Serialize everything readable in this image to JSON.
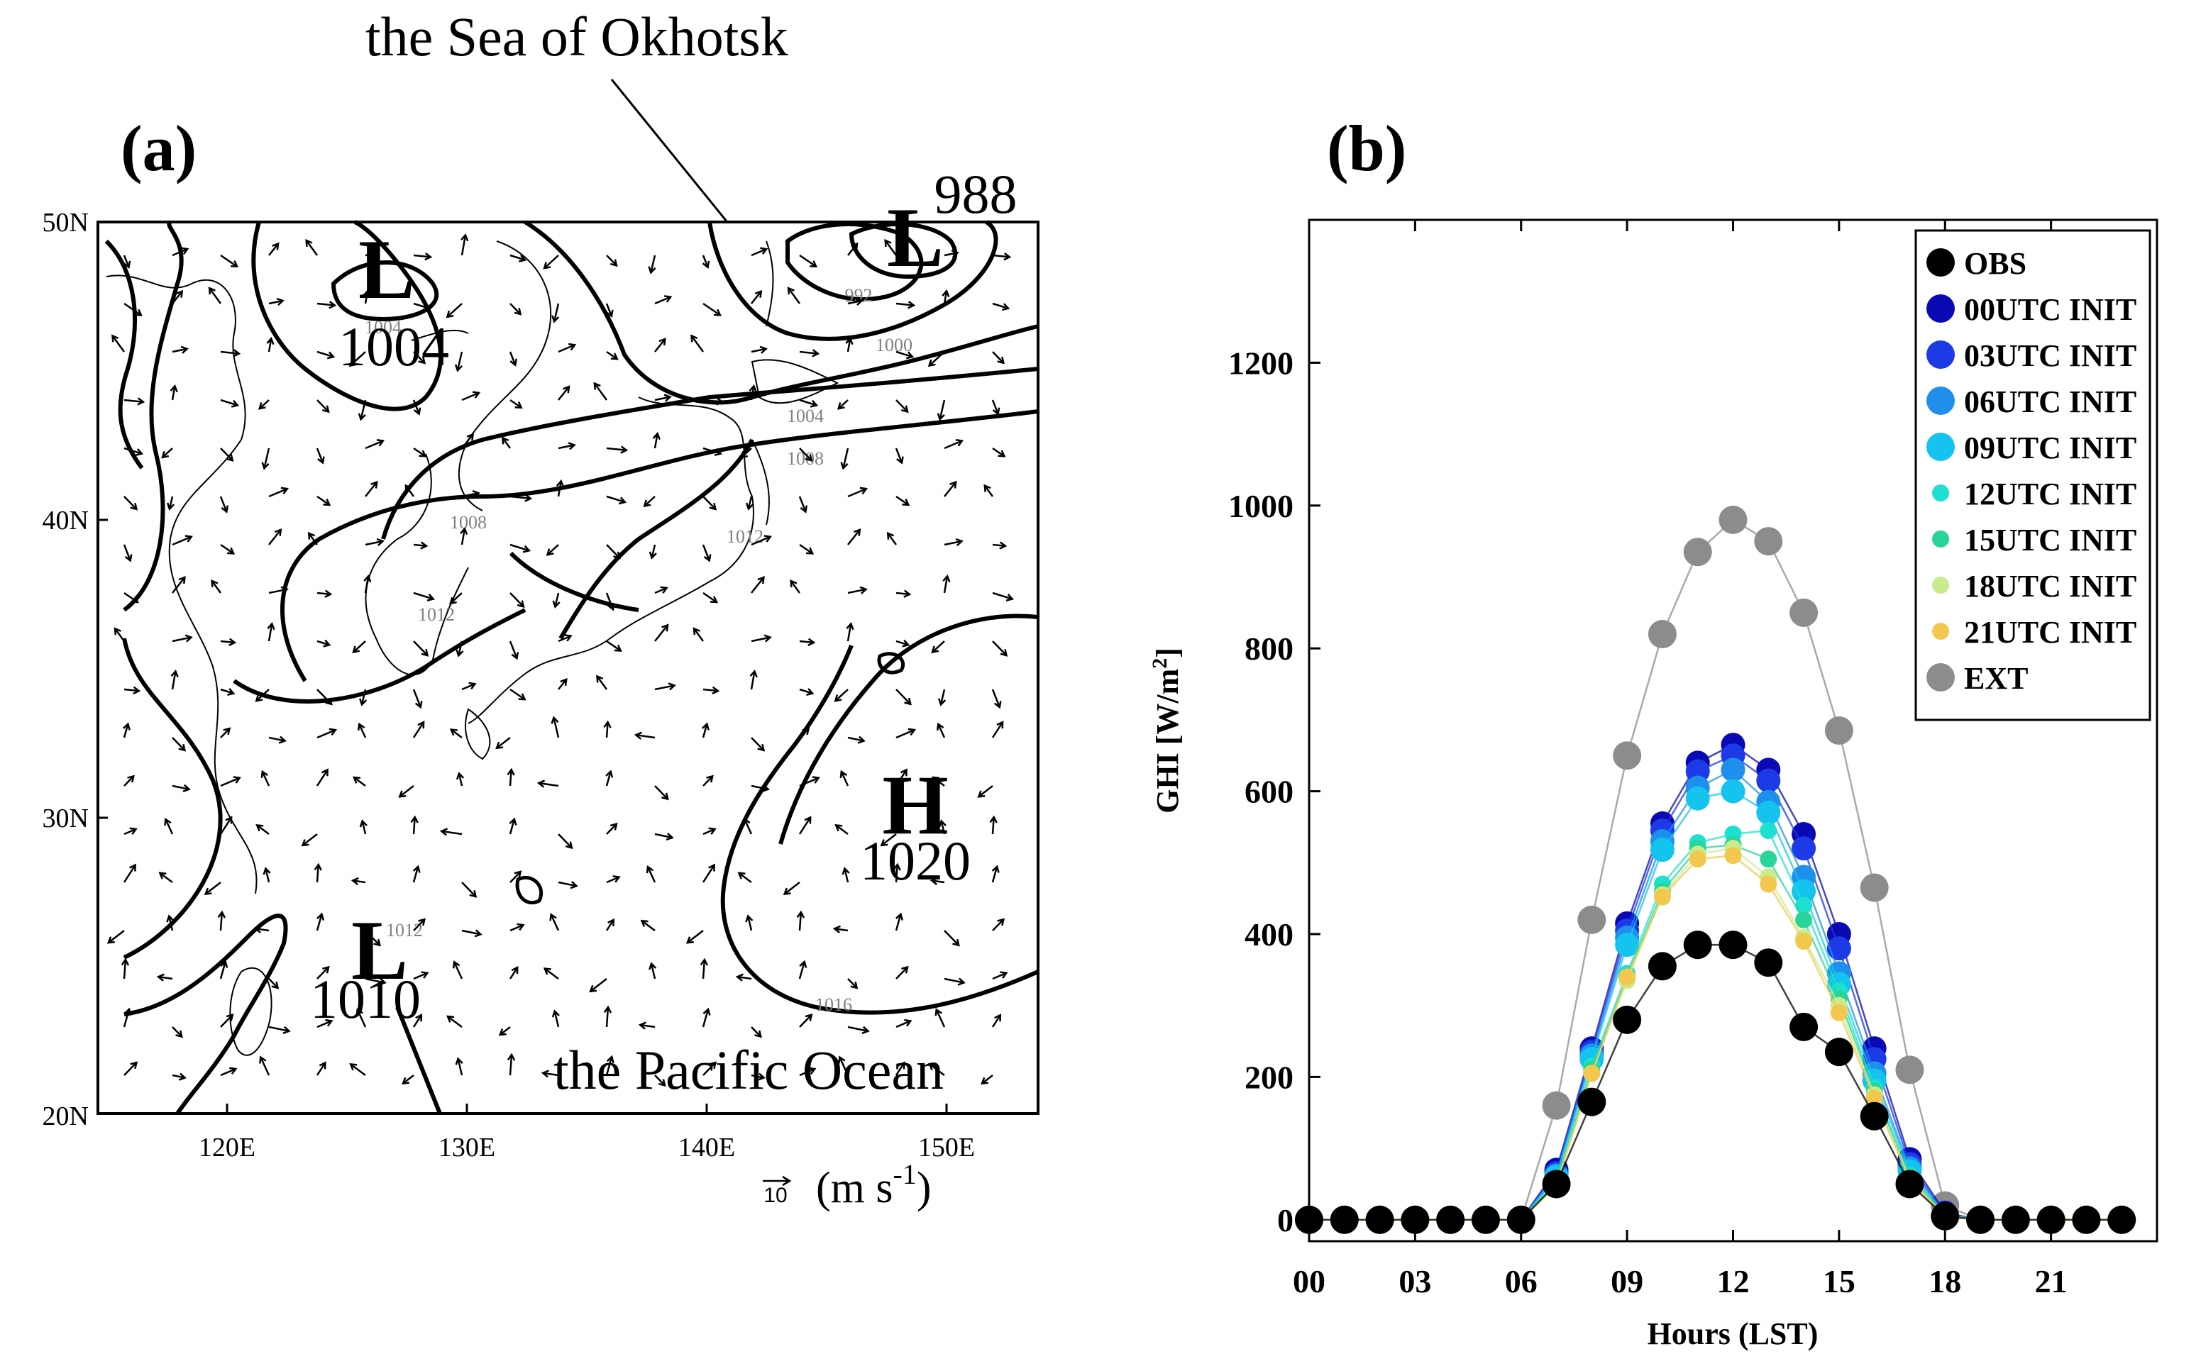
{
  "panel_a": {
    "label": "(a)",
    "top_annotation": "the Sea of Okhotsk",
    "bottom_annotation": "the Pacific Ocean",
    "lat_ticks": [
      "50N",
      "40N",
      "30N",
      "20N"
    ],
    "lon_ticks": [
      "120E",
      "130E",
      "140E",
      "150E"
    ],
    "wind_ref_value": "10",
    "wind_unit": "(m s",
    "wind_unit_exp": "-1",
    "wind_unit_close": ")",
    "pressure_systems": [
      {
        "letter": "L",
        "value": "1004"
      },
      {
        "letter": "L",
        "value": "988"
      },
      {
        "letter": "H",
        "value": "1020"
      },
      {
        "letter": "L",
        "value": "1010"
      }
    ],
    "contour_labels": [
      "992",
      "1000",
      "1004",
      "1008",
      "1008",
      "1012",
      "1012",
      "1012",
      "1016",
      "1004"
    ]
  },
  "chart_data": {
    "type": "scatter",
    "panel_label": "(b)",
    "xlabel": "Hours (LST)",
    "ylabel_main": "GHI [W/m",
    "ylabel_sup": "2",
    "ylabel_close": "]",
    "xlim": [
      0,
      24
    ],
    "ylim": [
      -30,
      1400
    ],
    "x_ticks": [
      0,
      3,
      6,
      9,
      12,
      15,
      18,
      21
    ],
    "x_tick_labels": [
      "00",
      "03",
      "06",
      "09",
      "12",
      "15",
      "18",
      "21"
    ],
    "y_ticks": [
      0,
      200,
      400,
      600,
      800,
      1000,
      1200
    ],
    "y_tick_labels": [
      "0",
      "200",
      "400",
      "600",
      "800",
      "1000",
      "1200"
    ],
    "legend_position": "top-right",
    "hours": [
      0,
      1,
      2,
      3,
      4,
      5,
      6,
      7,
      8,
      9,
      10,
      11,
      12,
      13,
      14,
      15,
      16,
      17,
      18,
      19,
      20,
      21,
      22,
      23
    ],
    "series": [
      {
        "name": "EXT",
        "color": "#8c8c8c",
        "marker": "large",
        "values": [
          0,
          0,
          0,
          0,
          0,
          0,
          0,
          160,
          420,
          650,
          820,
          935,
          980,
          950,
          850,
          685,
          465,
          210,
          20,
          0,
          0,
          0,
          0,
          0
        ]
      },
      {
        "name": "00UTC INIT",
        "color": "#0a0ab4",
        "marker": "medium",
        "values": [
          0,
          0,
          0,
          0,
          0,
          0,
          0,
          70,
          240,
          415,
          555,
          640,
          665,
          630,
          540,
          400,
          240,
          85,
          10,
          0,
          0,
          0,
          0,
          0
        ]
      },
      {
        "name": "03UTC INIT",
        "color": "#1c3ae6",
        "marker": "medium",
        "values": [
          0,
          0,
          0,
          0,
          0,
          0,
          0,
          65,
          235,
          405,
          545,
          628,
          650,
          615,
          520,
          380,
          225,
          78,
          8,
          0,
          0,
          0,
          0,
          0
        ]
      },
      {
        "name": "06UTC INIT",
        "color": "#1e90ec",
        "marker": "medium",
        "values": [
          0,
          0,
          0,
          0,
          0,
          0,
          0,
          62,
          230,
          395,
          530,
          605,
          630,
          585,
          480,
          345,
          205,
          72,
          8,
          0,
          0,
          0,
          0,
          0
        ]
      },
      {
        "name": "09UTC INIT",
        "color": "#14c4ee",
        "marker": "medium",
        "values": [
          0,
          0,
          0,
          0,
          0,
          0,
          0,
          60,
          225,
          385,
          518,
          590,
          600,
          570,
          460,
          330,
          195,
          68,
          7,
          0,
          0,
          0,
          0,
          0
        ]
      },
      {
        "name": "12UTC INIT",
        "color": "#1ee0d0",
        "marker": "small",
        "values": [
          0,
          0,
          0,
          0,
          0,
          0,
          0,
          55,
          215,
          345,
          470,
          528,
          540,
          545,
          440,
          320,
          185,
          62,
          6,
          0,
          0,
          0,
          0,
          0
        ]
      },
      {
        "name": "15UTC INIT",
        "color": "#28d49a",
        "marker": "small",
        "values": [
          0,
          0,
          0,
          0,
          0,
          0,
          0,
          52,
          210,
          340,
          460,
          520,
          525,
          505,
          420,
          310,
          180,
          60,
          6,
          0,
          0,
          0,
          0,
          0
        ]
      },
      {
        "name": "18UTC INIT",
        "color": "#c8ec8c",
        "marker": "small",
        "values": [
          0,
          0,
          0,
          0,
          0,
          0,
          0,
          50,
          205,
          335,
          455,
          512,
          520,
          480,
          395,
          300,
          175,
          58,
          5,
          0,
          0,
          0,
          0,
          0
        ]
      },
      {
        "name": "21UTC INIT",
        "color": "#f2c84e",
        "marker": "small",
        "values": [
          0,
          0,
          0,
          0,
          0,
          0,
          0,
          48,
          205,
          340,
          452,
          505,
          510,
          470,
          390,
          290,
          170,
          56,
          5,
          0,
          0,
          0,
          0,
          0
        ]
      },
      {
        "name": "OBS",
        "color": "#000000",
        "marker": "large",
        "values": [
          0,
          0,
          0,
          0,
          0,
          0,
          0,
          50,
          165,
          280,
          355,
          385,
          385,
          360,
          270,
          235,
          145,
          50,
          5,
          0,
          0,
          0,
          0,
          0
        ]
      }
    ],
    "legend_order": [
      "OBS",
      "00UTC INIT",
      "03UTC INIT",
      "06UTC INIT",
      "09UTC INIT",
      "12UTC INIT",
      "15UTC INIT",
      "18UTC INIT",
      "21UTC INIT",
      "EXT"
    ]
  }
}
